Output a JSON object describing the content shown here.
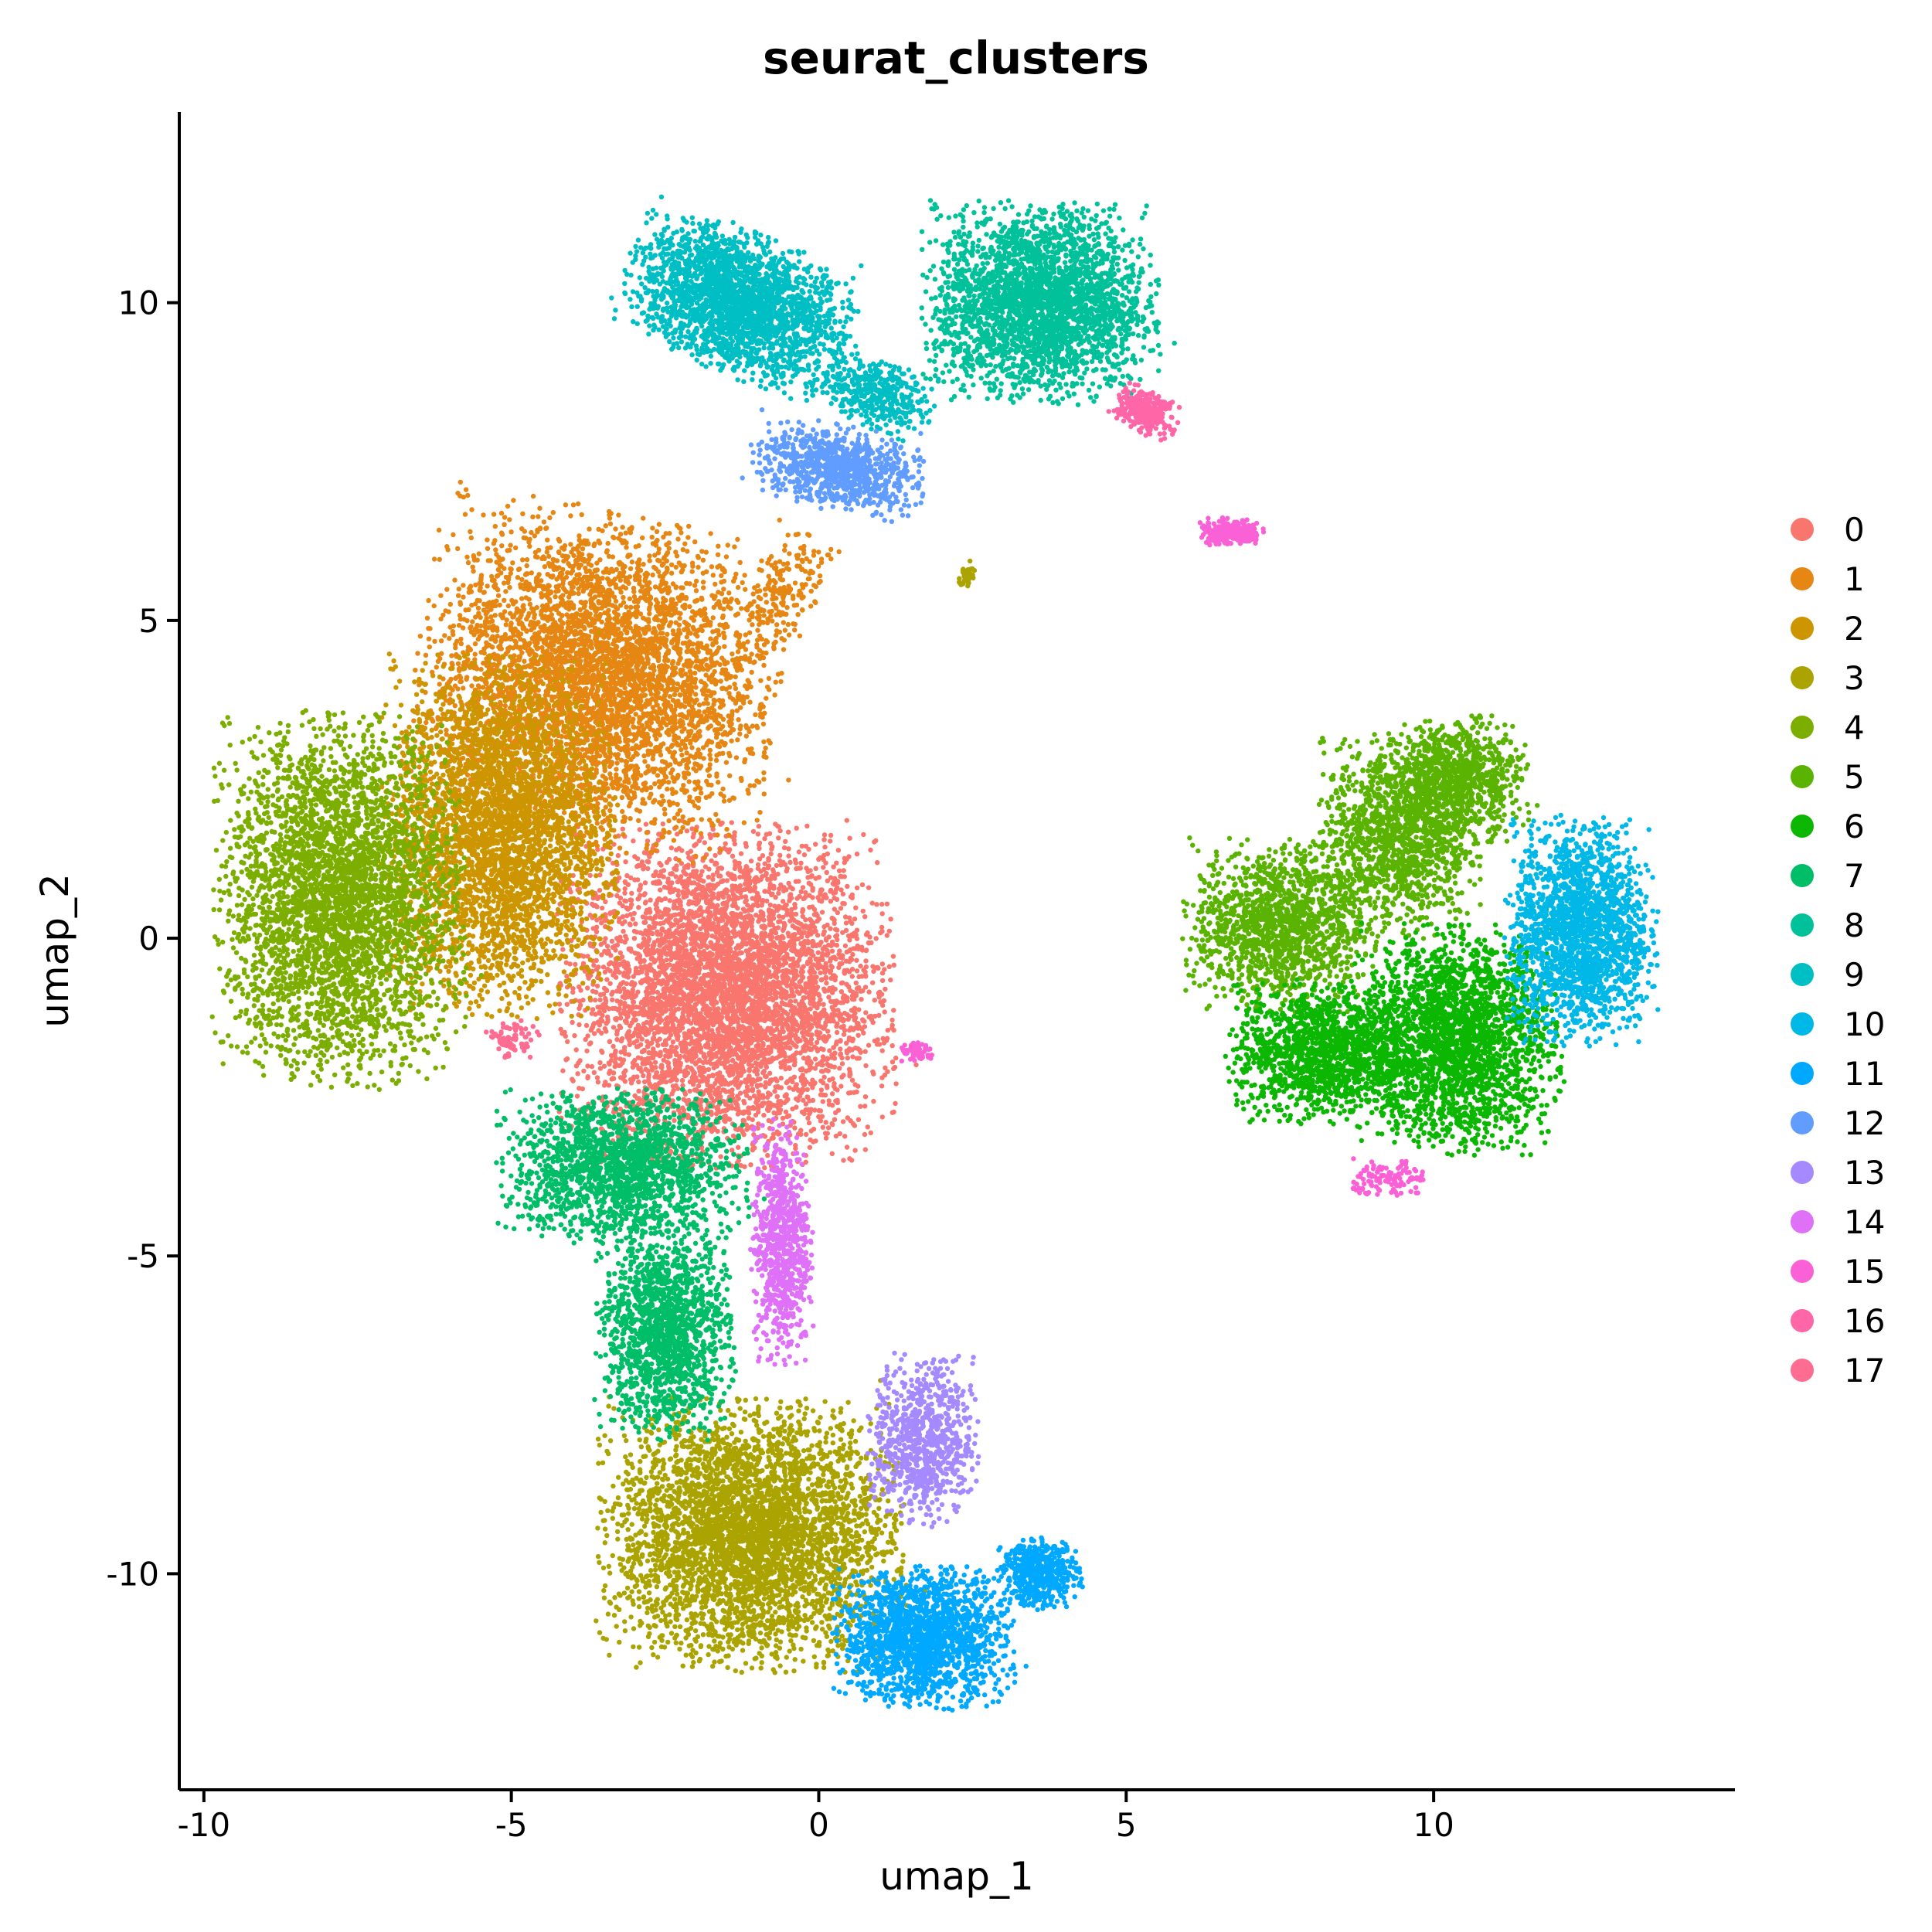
{
  "chart_data": {
    "type": "scatter",
    "title": "seurat_clusters",
    "xlabel": "umap_1",
    "ylabel": "umap_2",
    "xlim": [
      -10.4,
      14.9
    ],
    "ylim": [
      -13.4,
      13.0
    ],
    "x_ticks": [
      -10,
      -5,
      0,
      5,
      10
    ],
    "y_ticks": [
      -10,
      -5,
      0,
      5,
      10
    ],
    "x_tick_labels": [
      "-10",
      "-5",
      "0",
      "5",
      "10"
    ],
    "y_tick_labels": [
      "-10",
      "-5",
      "0",
      "5",
      "10"
    ],
    "grid": false,
    "legend_position": "right",
    "series": [
      {
        "name": "0",
        "color": "#F8766D",
        "regions": [
          {
            "cx": -1.5,
            "cy": -0.9,
            "sx": 2.4,
            "sy": 2.4,
            "rot": 0,
            "n": 5200
          }
        ]
      },
      {
        "name": "1",
        "color": "#E68613",
        "regions": [
          {
            "cx": -3.6,
            "cy": 4.1,
            "sx": 2.6,
            "sy": 2.3,
            "rot": -10,
            "n": 4600
          },
          {
            "cx": -0.6,
            "cy": 5.4,
            "sx": 0.5,
            "sy": 1.0,
            "rot": -30,
            "n": 200
          }
        ]
      },
      {
        "name": "2",
        "color": "#CD9600",
        "regions": [
          {
            "cx": -5.2,
            "cy": 1.6,
            "sx": 1.7,
            "sy": 2.5,
            "rot": 0,
            "n": 3600
          }
        ]
      },
      {
        "name": "3",
        "color": "#ABA300",
        "regions": [
          {
            "cx": -1.1,
            "cy": -9.4,
            "sx": 2.2,
            "sy": 1.9,
            "rot": 0,
            "n": 4000
          },
          {
            "cx": 2.4,
            "cy": 5.7,
            "sx": 0.15,
            "sy": 0.2,
            "rot": -40,
            "n": 40
          }
        ]
      },
      {
        "name": "4",
        "color": "#7CAE00",
        "regions": [
          {
            "cx": -7.8,
            "cy": 0.6,
            "sx": 1.8,
            "sy": 2.6,
            "rot": 0,
            "n": 3800
          }
        ]
      },
      {
        "name": "5",
        "color": "#5AB300",
        "regions": [
          {
            "cx": 7.5,
            "cy": 0.2,
            "sx": 1.4,
            "sy": 1.2,
            "rot": 0,
            "n": 1400
          },
          {
            "cx": 9.4,
            "cy": 1.6,
            "sx": 1.2,
            "sy": 1.4,
            "rot": 0,
            "n": 1300
          },
          {
            "cx": 10.4,
            "cy": 2.5,
            "sx": 1.0,
            "sy": 0.9,
            "rot": 0,
            "n": 900
          }
        ]
      },
      {
        "name": "6",
        "color": "#0CB702",
        "regions": [
          {
            "cx": 10.4,
            "cy": -1.6,
            "sx": 1.5,
            "sy": 1.6,
            "rot": 0,
            "n": 2400
          },
          {
            "cx": 8.2,
            "cy": -1.8,
            "sx": 1.4,
            "sy": 1.0,
            "rot": 0,
            "n": 1400
          }
        ]
      },
      {
        "name": "7",
        "color": "#00BE67",
        "regions": [
          {
            "cx": -3.2,
            "cy": -3.6,
            "sx": 1.8,
            "sy": 1.1,
            "rot": 0,
            "n": 1800
          },
          {
            "cx": -2.5,
            "cy": -6.2,
            "sx": 1.0,
            "sy": 1.5,
            "rot": 0,
            "n": 1500
          }
        ]
      },
      {
        "name": "8",
        "color": "#00C19A",
        "regions": [
          {
            "cx": 3.6,
            "cy": 10.0,
            "sx": 1.7,
            "sy": 1.4,
            "rot": 0,
            "n": 2800
          }
        ]
      },
      {
        "name": "9",
        "color": "#00BFC4",
        "regions": [
          {
            "cx": -1.3,
            "cy": 10.0,
            "sx": 1.7,
            "sy": 1.0,
            "rot": -22,
            "n": 2400
          },
          {
            "cx": 0.9,
            "cy": 8.6,
            "sx": 0.9,
            "sy": 0.5,
            "rot": -20,
            "n": 400
          }
        ]
      },
      {
        "name": "10",
        "color": "#00B8E7",
        "regions": [
          {
            "cx": 12.4,
            "cy": 0.1,
            "sx": 1.1,
            "sy": 1.6,
            "rot": 0,
            "n": 1900
          }
        ]
      },
      {
        "name": "11",
        "color": "#00A9FF",
        "regions": [
          {
            "cx": 1.7,
            "cy": -11.0,
            "sx": 1.3,
            "sy": 1.0,
            "rot": 0,
            "n": 1700
          },
          {
            "cx": 3.6,
            "cy": -10.0,
            "sx": 0.6,
            "sy": 0.5,
            "rot": 0,
            "n": 500
          }
        ]
      },
      {
        "name": "12",
        "color": "#619CFF",
        "regions": [
          {
            "cx": 0.3,
            "cy": 7.4,
            "sx": 1.3,
            "sy": 0.6,
            "rot": -10,
            "n": 900
          }
        ]
      },
      {
        "name": "13",
        "color": "#A58AFF",
        "regions": [
          {
            "cx": 1.7,
            "cy": -7.9,
            "sx": 0.8,
            "sy": 1.2,
            "rot": 0,
            "n": 800
          }
        ]
      },
      {
        "name": "14",
        "color": "#DF70F8",
        "regions": [
          {
            "cx": -0.6,
            "cy": -4.8,
            "sx": 0.45,
            "sy": 1.7,
            "rot": 0,
            "n": 800
          }
        ]
      },
      {
        "name": "15",
        "color": "#FB61D7",
        "regions": [
          {
            "cx": 6.7,
            "cy": 6.4,
            "sx": 0.5,
            "sy": 0.2,
            "rot": 0,
            "n": 220
          },
          {
            "cx": 9.3,
            "cy": -3.8,
            "sx": 0.6,
            "sy": 0.3,
            "rot": 0,
            "n": 120
          },
          {
            "cx": 1.6,
            "cy": -1.8,
            "sx": 0.3,
            "sy": 0.15,
            "rot": 0,
            "n": 60
          }
        ]
      },
      {
        "name": "16",
        "color": "#FF66A8",
        "regions": [
          {
            "cx": 5.3,
            "cy": 8.3,
            "sx": 0.5,
            "sy": 0.3,
            "rot": -25,
            "n": 300
          }
        ]
      },
      {
        "name": "17",
        "color": "#FF6C91",
        "regions": [
          {
            "cx": -5.0,
            "cy": -1.6,
            "sx": 0.4,
            "sy": 0.3,
            "rot": 0,
            "n": 80
          }
        ]
      }
    ]
  }
}
